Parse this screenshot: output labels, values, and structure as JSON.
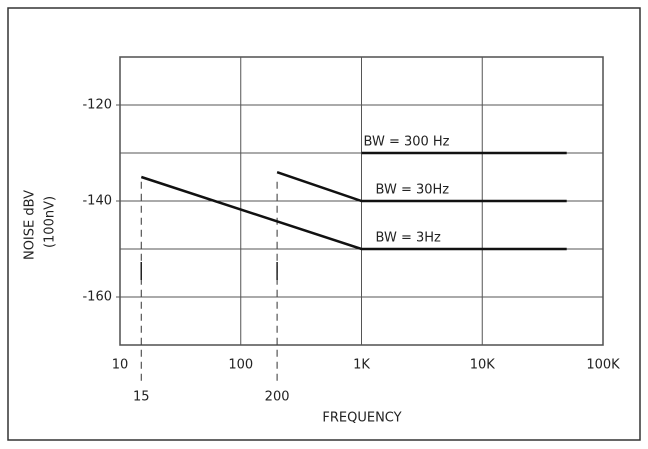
{
  "chart_data": {
    "type": "line",
    "xlabel": "FREQUENCY",
    "ylabel": "NOISE dBV",
    "yunit": "(100nV)",
    "log_x": true,
    "grid": true,
    "xlim": [
      10,
      100000
    ],
    "xticks": [
      10,
      100,
      {
        "value": 1000,
        "label": "1K"
      },
      {
        "value": 10000,
        "label": "10K"
      },
      {
        "value": 100000,
        "label": "100K"
      }
    ],
    "ylim": [
      -170,
      -110
    ],
    "yticks": [
      -120,
      -140,
      -160
    ],
    "ygrid": [
      -110,
      -120,
      -130,
      -140,
      -150,
      -160,
      -170
    ],
    "markers": [
      {
        "x": 15,
        "label": "15"
      },
      {
        "x": 200,
        "label": "200"
      }
    ],
    "series": [
      {
        "name": "BW = 300 Hz",
        "color": "#111",
        "x": [
          1000,
          50000
        ],
        "values": [
          -130,
          -130
        ]
      },
      {
        "name": "BW = 30Hz",
        "color": "#111",
        "x": [
          200,
          1000,
          50000
        ],
        "values": [
          -134,
          -140,
          -140
        ]
      },
      {
        "name": "BW = 3Hz",
        "color": "#111",
        "x": [
          15,
          1000,
          50000
        ],
        "values": [
          -135,
          -150,
          -150
        ]
      }
    ]
  }
}
